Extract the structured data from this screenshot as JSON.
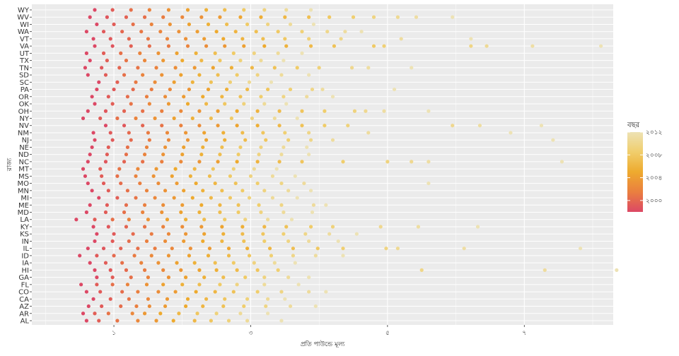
{
  "chart_data": {
    "type": "scatter",
    "title": "",
    "xlabel": "প্রতি পাউন্ডে মূল্য",
    "ylabel": "রাজ্য",
    "xlim": [
      -0.2,
      8.3
    ],
    "x_ticks": [
      1,
      3,
      5,
      7
    ],
    "x_tick_labels": [
      "১",
      "৩",
      "৫",
      "৭"
    ],
    "grid": true,
    "categories": [
      "AL",
      "AR",
      "AZ",
      "CA",
      "CO",
      "FL",
      "GA",
      "HI",
      "IA",
      "ID",
      "IL",
      "IN",
      "KS",
      "KY",
      "LA",
      "MD",
      "ME",
      "MI",
      "MN",
      "MO",
      "MS",
      "MT",
      "NC",
      "ND",
      "NE",
      "NJ",
      "NM",
      "NV",
      "NY",
      "OH",
      "OK",
      "OR",
      "PA",
      "SC",
      "SD",
      "TN",
      "TX",
      "UT",
      "VA",
      "VT",
      "WA",
      "WI",
      "WV",
      "WY"
    ],
    "legend": {
      "title": "বছর",
      "position": "right",
      "range": [
        1998,
        2012
      ],
      "ticks": [
        2000,
        2004,
        2008,
        2012
      ],
      "tick_labels": [
        "২০০০",
        "২০০৪",
        "২০০৮",
        "২০১২"
      ],
      "colors": [
        "#dc4865",
        "#ea7f3f",
        "#eeaa2e",
        "#f0ce6c",
        "#ede2b4"
      ]
    },
    "series": [
      {
        "category": "AL",
        "x": [
          0.6,
          0.78,
          1.05,
          1.35,
          1.62,
          1.87,
          2.18,
          2.42,
          2.68,
          2.95,
          3.45
        ]
      },
      {
        "category": "AR",
        "x": [
          0.55,
          0.72,
          0.92,
          1.27,
          1.45,
          1.68,
          1.95,
          2.22,
          2.5,
          2.85,
          3.25
        ]
      },
      {
        "category": "AZ",
        "x": [
          0.63,
          0.82,
          1.1,
          1.33,
          1.52,
          1.75,
          2.05,
          2.3,
          2.6,
          2.9,
          3.22,
          3.58,
          3.95
        ]
      },
      {
        "category": "CA",
        "x": [
          0.7,
          0.95,
          1.22,
          1.5,
          1.78,
          2.08,
          2.35,
          2.62,
          2.95,
          3.25,
          3.5
        ]
      },
      {
        "category": "CO",
        "x": [
          0.6,
          0.8,
          1.12,
          1.35,
          1.65,
          1.9,
          2.2,
          2.48,
          2.75,
          3.1,
          3.45,
          3.85,
          4.1
        ]
      },
      {
        "category": "FL",
        "x": [
          0.52,
          0.75,
          0.98,
          1.2,
          1.48,
          1.72,
          2.0,
          2.25,
          2.55,
          2.8,
          3.2,
          3.7
        ]
      },
      {
        "category": "GA",
        "x": [
          0.75,
          0.98,
          1.25,
          1.5,
          1.8,
          2.05,
          2.32,
          2.6,
          2.92,
          3.2,
          3.55,
          3.85
        ]
      },
      {
        "category": "HI",
        "x": [
          0.72,
          0.95,
          1.18,
          1.45,
          1.72,
          1.98,
          2.25,
          2.5,
          2.8,
          3.1,
          3.4,
          5.5,
          7.3,
          8.35
        ]
      },
      {
        "category": "IA",
        "x": [
          0.65,
          0.88,
          1.12,
          1.4,
          1.65,
          1.92,
          2.18,
          2.48,
          2.75,
          3.05,
          3.35,
          3.65
        ]
      },
      {
        "category": "ID",
        "x": [
          0.5,
          0.75,
          1.0,
          1.3,
          1.55,
          1.8,
          2.1,
          2.38,
          2.68,
          2.98,
          3.3,
          3.62,
          3.95,
          4.35
        ]
      },
      {
        "category": "IL",
        "x": [
          0.62,
          0.85,
          1.1,
          1.35,
          1.6,
          1.85,
          2.12,
          2.4,
          2.68,
          2.95,
          3.28,
          3.62,
          3.98,
          4.35,
          4.98,
          5.15,
          6.12,
          7.82
        ]
      },
      {
        "category": "IN",
        "x": [
          0.72,
          0.98,
          1.22,
          1.48,
          1.75,
          2.02,
          2.3,
          2.58,
          2.9,
          3.2,
          3.55,
          3.85,
          4.28
        ]
      },
      {
        "category": "KS",
        "x": [
          0.75,
          1.0,
          1.28,
          1.55,
          1.8,
          2.05,
          2.32,
          2.6,
          2.88,
          3.18,
          3.48,
          3.8,
          4.15,
          4.55
        ]
      },
      {
        "category": "KY",
        "x": [
          0.7,
          0.92,
          1.18,
          1.45,
          1.72,
          2.0,
          2.28,
          2.58,
          2.88,
          3.2,
          3.52,
          3.88,
          4.2,
          4.9,
          5.45,
          6.32
        ]
      },
      {
        "category": "LA",
        "x": [
          0.45,
          0.72,
          0.98,
          1.22,
          1.5,
          1.78,
          2.05,
          2.32,
          2.62,
          2.92,
          3.25,
          3.6
        ]
      },
      {
        "category": "MD",
        "x": [
          0.6,
          0.88,
          1.15,
          1.42,
          1.7,
          1.98,
          2.25,
          2.55,
          2.82,
          3.15,
          3.48,
          3.9
        ]
      },
      {
        "category": "ME",
        "x": [
          0.65,
          0.9,
          1.18,
          1.45,
          1.72,
          2.0,
          2.28,
          2.55,
          2.82,
          3.12,
          3.45,
          3.92,
          4.1
        ]
      },
      {
        "category": "MI",
        "x": [
          0.78,
          1.05,
          1.32,
          1.6,
          1.88,
          2.15,
          2.42,
          2.7,
          2.98,
          3.32,
          3.68
        ]
      },
      {
        "category": "MN",
        "x": [
          0.68,
          0.92,
          1.2,
          1.48,
          1.75,
          2.02,
          2.3,
          2.58,
          2.88,
          3.2,
          3.55,
          3.88
        ]
      },
      {
        "category": "MO",
        "x": [
          0.62,
          0.85,
          1.1,
          1.38,
          1.65,
          1.92,
          2.2,
          2.48,
          2.78,
          3.1,
          3.45,
          3.78,
          5.6
        ]
      },
      {
        "category": "MS",
        "x": [
          0.58,
          0.82,
          1.05,
          1.32,
          1.58,
          1.85,
          2.12,
          2.4,
          2.7,
          3.0,
          3.32,
          3.65
        ]
      },
      {
        "category": "MT",
        "x": [
          0.55,
          0.8,
          1.08,
          1.35,
          1.62,
          1.9,
          2.18,
          2.45,
          2.75,
          3.05,
          3.38
        ]
      },
      {
        "category": "NC",
        "x": [
          0.62,
          0.88,
          1.15,
          1.42,
          1.7,
          1.98,
          2.25,
          2.52,
          2.8,
          3.1,
          3.42,
          3.75,
          4.35,
          5.0,
          5.35,
          5.6,
          7.55
        ]
      },
      {
        "category": "ND",
        "x": [
          0.65,
          0.9,
          1.18,
          1.45,
          1.72,
          2.0,
          2.28,
          2.55,
          2.82,
          3.12,
          3.45,
          3.85
        ]
      },
      {
        "category": "NE",
        "x": [
          0.68,
          0.92,
          1.2,
          1.48,
          1.75,
          2.02,
          2.3,
          2.58,
          2.85,
          3.15,
          3.48,
          3.82
        ]
      },
      {
        "category": "NJ",
        "x": [
          0.72,
          0.98,
          1.25,
          1.52,
          1.8,
          2.08,
          2.35,
          2.62,
          2.92,
          3.22,
          3.55,
          3.88,
          4.2,
          7.42
        ]
      },
      {
        "category": "NM",
        "x": [
          0.7,
          0.95,
          1.22,
          1.5,
          1.78,
          2.05,
          2.32,
          2.6,
          2.88,
          3.18,
          3.5,
          3.85,
          4.72,
          6.8
        ]
      },
      {
        "category": "NV",
        "x": [
          0.88,
          1.15,
          1.42,
          1.7,
          1.98,
          2.25,
          2.52,
          2.8,
          3.1,
          3.42,
          3.75,
          4.08,
          4.42,
          5.95,
          6.35,
          7.25
        ]
      },
      {
        "category": "NY",
        "x": [
          0.55,
          0.8,
          1.05,
          1.32,
          1.6,
          1.88,
          2.15,
          2.42,
          2.72,
          3.02,
          3.35,
          3.68
        ]
      },
      {
        "category": "OH",
        "x": [
          0.62,
          0.88,
          1.15,
          1.42,
          1.7,
          1.98,
          2.25,
          2.52,
          2.8,
          3.1,
          3.42,
          3.75,
          4.08,
          4.52,
          4.68,
          4.95,
          5.6
        ]
      },
      {
        "category": "OK",
        "x": [
          0.72,
          0.98,
          1.25,
          1.52,
          1.8,
          2.08,
          2.35,
          2.62,
          2.9,
          3.2,
          3.52
        ]
      },
      {
        "category": "OR",
        "x": [
          0.68,
          0.92,
          1.2,
          1.48,
          1.75,
          2.02,
          2.3,
          2.58,
          2.85,
          3.15,
          3.48,
          3.82,
          4.2
        ]
      },
      {
        "category": "PA",
        "x": [
          0.75,
          1.0,
          1.28,
          1.55,
          1.82,
          2.1,
          2.38,
          2.65,
          2.95,
          3.25,
          3.58,
          3.9,
          4.05,
          5.1
        ]
      },
      {
        "category": "SC",
        "x": [
          0.78,
          1.05,
          1.32,
          1.6,
          1.88,
          2.15,
          2.42,
          2.7,
          2.98,
          3.3
        ]
      },
      {
        "category": "SD",
        "x": [
          0.62,
          0.88,
          1.15,
          1.42,
          1.7,
          1.98,
          2.25,
          2.52,
          2.8,
          3.1,
          3.45,
          3.85
        ]
      },
      {
        "category": "TN",
        "x": [
          0.58,
          0.82,
          1.08,
          1.35,
          1.62,
          1.9,
          2.18,
          2.45,
          2.72,
          3.02,
          3.35,
          3.68,
          4.0,
          4.48,
          4.72,
          5.35
        ]
      },
      {
        "category": "TX",
        "x": [
          0.65,
          0.9,
          1.18,
          1.45,
          1.72,
          2.0,
          2.28,
          2.55,
          2.85,
          3.15,
          3.48
        ]
      },
      {
        "category": "UT",
        "x": [
          0.6,
          0.85,
          1.1,
          1.38,
          1.65,
          1.92,
          2.2,
          2.48,
          2.75,
          3.05,
          3.4,
          3.75
        ]
      },
      {
        "category": "VA",
        "x": [
          0.72,
          0.98,
          1.25,
          1.52,
          1.8,
          2.08,
          2.35,
          2.62,
          2.9,
          3.2,
          3.52,
          3.88,
          4.22,
          4.8,
          4.95,
          6.22,
          6.45,
          7.12,
          8.12
        ]
      },
      {
        "category": "VT",
        "x": [
          0.7,
          0.95,
          1.22,
          1.5,
          1.78,
          2.05,
          2.32,
          2.6,
          2.88,
          3.18,
          3.5,
          3.85,
          4.32,
          5.2,
          6.22
        ]
      },
      {
        "category": "WA",
        "x": [
          0.6,
          0.85,
          1.12,
          1.4,
          1.68,
          1.95,
          2.22,
          2.5,
          2.78,
          3.08,
          3.4,
          3.75,
          4.12,
          4.38,
          4.62
        ]
      },
      {
        "category": "WI",
        "x": [
          0.75,
          1.0,
          1.28,
          1.55,
          1.82,
          2.1,
          2.38,
          2.65,
          2.95,
          3.25,
          3.58,
          3.92
        ]
      },
      {
        "category": "WV",
        "x": [
          0.65,
          0.9,
          1.18,
          1.45,
          1.72,
          2.0,
          2.28,
          2.55,
          2.85,
          3.15,
          3.5,
          3.85,
          4.15,
          4.5,
          4.8,
          5.15,
          5.42,
          5.95
        ]
      },
      {
        "category": "WY",
        "x": [
          0.72,
          0.98,
          1.25,
          1.52,
          1.8,
          2.08,
          2.35,
          2.62,
          2.9,
          3.2,
          3.52,
          3.88
        ]
      }
    ]
  }
}
